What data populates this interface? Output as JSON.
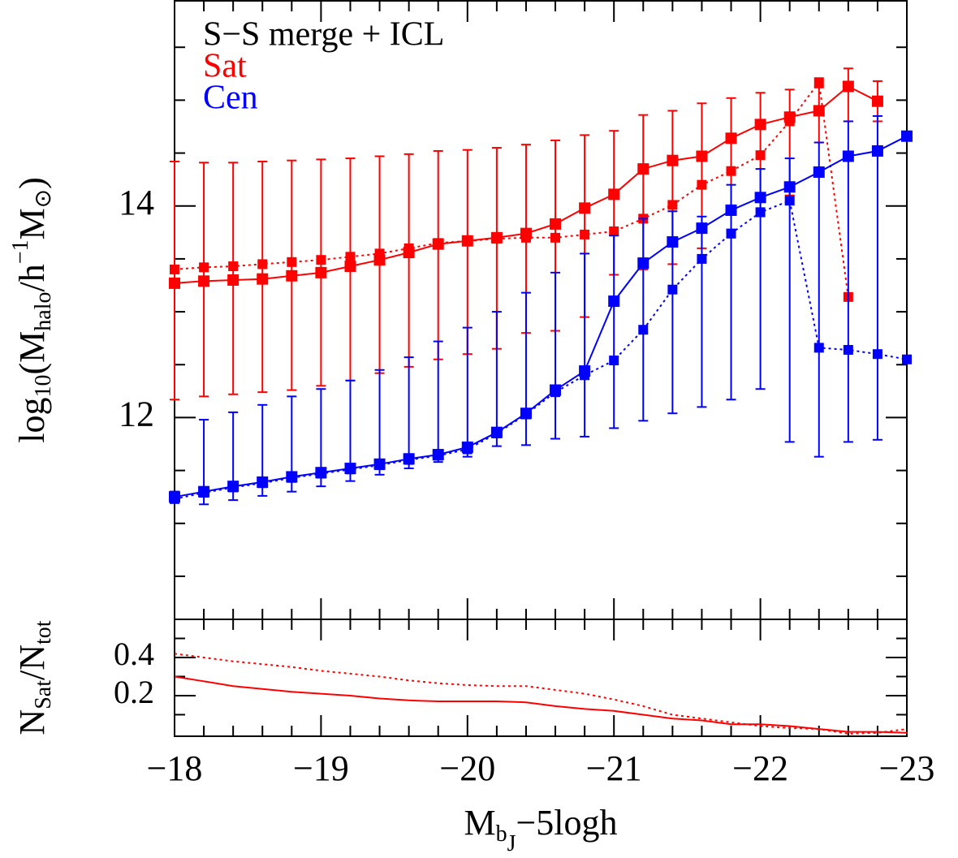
{
  "chart_data": [
    {
      "type": "line",
      "annotation": "S−S merge + ICL",
      "ylabel": [
        "log",
        "10",
        "(M",
        "halo",
        "/h",
        "−1",
        "M",
        "⊙",
        ")"
      ],
      "x": [
        -18,
        -18.2,
        -18.4,
        -18.6,
        -18.8,
        -19,
        -19.2,
        -19.4,
        -19.6,
        -19.8,
        -20,
        -20.2,
        -20.4,
        -20.6,
        -20.8,
        -21,
        -21.2,
        -21.4,
        -21.6,
        -21.8,
        -22,
        -22.2,
        -22.4,
        -22.6,
        -22.8,
        -23
      ],
      "xlim": [
        -18,
        -23
      ],
      "xticks": [
        -18,
        -19,
        -20,
        -21,
        -22,
        -23
      ],
      "show_xtick_labels": false,
      "xminorticks": [
        -18.2,
        -18.4,
        -18.6,
        -18.8,
        -19.2,
        -19.4,
        -19.6,
        -19.8,
        -20.2,
        -20.4,
        -20.6,
        -20.8,
        -21.2,
        -21.4,
        -21.6,
        -21.8,
        -22.2,
        -22.4,
        -22.6,
        -22.8
      ],
      "ylim": [
        10.093,
        15.939
      ],
      "yticks": [
        12,
        14
      ],
      "yminorticks": [
        10.5,
        11,
        11.5,
        12.5,
        13,
        13.5,
        14.5,
        15,
        15.5
      ],
      "series": [
        {
          "name": "Sat",
          "color": "#ff0000",
          "values": [
            13.27,
            13.29,
            13.3,
            13.31,
            13.34,
            13.37,
            13.43,
            13.49,
            13.56,
            13.64,
            13.67,
            13.7,
            13.74,
            13.83,
            13.98,
            14.11,
            14.35,
            14.43,
            14.47,
            14.64,
            14.77,
            14.84,
            14.9,
            15.13,
            14.99,
            null
          ],
          "lower": [
            12.17,
            12.2,
            12.22,
            12.24,
            12.26,
            12.3,
            12.35,
            12.42,
            12.48,
            12.55,
            12.6,
            12.65,
            12.8,
            12.82,
            12.95,
            13.35,
            13.4,
            13.45,
            13.6,
            13.7,
            13.98,
            14.1,
            14.6,
            14.8,
            14.8,
            null
          ],
          "upper": [
            14.42,
            14.41,
            14.41,
            14.42,
            14.43,
            14.44,
            14.45,
            14.47,
            14.49,
            14.52,
            14.53,
            14.55,
            14.58,
            14.62,
            14.67,
            14.71,
            14.86,
            14.9,
            14.97,
            15.02,
            15.07,
            15.1,
            15.12,
            15.3,
            15.18,
            null
          ],
          "alt_values": [
            13.4,
            13.42,
            13.43,
            13.45,
            13.47,
            13.49,
            13.52,
            13.55,
            13.6,
            13.65,
            13.67,
            13.69,
            13.7,
            13.7,
            13.73,
            13.76,
            13.88,
            14.01,
            14.2,
            14.33,
            14.48,
            14.8,
            15.17,
            13.14,
            null,
            null
          ]
        },
        {
          "name": "Cen",
          "color": "#0000ff",
          "values": [
            11.25,
            11.3,
            11.35,
            11.39,
            11.44,
            11.48,
            11.52,
            11.56,
            11.61,
            11.65,
            11.72,
            11.86,
            12.04,
            12.26,
            12.44,
            13.1,
            13.46,
            13.66,
            13.79,
            13.96,
            14.08,
            14.18,
            14.32,
            14.47,
            14.52,
            14.66
          ],
          "lower": [
            11.3,
            11.18,
            11.22,
            11.26,
            11.3,
            11.35,
            11.4,
            11.46,
            11.52,
            11.58,
            11.63,
            11.73,
            11.74,
            11.8,
            11.82,
            11.9,
            11.97,
            12.04,
            12.1,
            12.17,
            12.27,
            11.77,
            11.63,
            11.77,
            11.79,
            null
          ],
          "upper": [
            11.3,
            11.98,
            12.05,
            12.12,
            12.2,
            12.27,
            12.35,
            12.45,
            12.57,
            12.72,
            12.85,
            13.0,
            13.18,
            13.37,
            13.55,
            13.72,
            13.88,
            13.95,
            13.9,
            14.2,
            14.35,
            14.45,
            14.6,
            14.8,
            14.85,
            null
          ],
          "alt_values": [
            11.23,
            11.29,
            11.34,
            11.38,
            11.43,
            11.47,
            11.51,
            11.55,
            11.6,
            11.64,
            11.7,
            11.85,
            12.03,
            12.24,
            12.4,
            12.54,
            12.83,
            13.21,
            13.5,
            13.74,
            13.94,
            14.05,
            12.66,
            12.64,
            12.6,
            12.55
          ]
        }
      ]
    },
    {
      "type": "line",
      "ylabel": [
        "N",
        "Sat",
        "/N",
        "tot"
      ],
      "xlabel": [
        "M",
        "b",
        "J",
        "−5logh"
      ],
      "x": [
        -18,
        -18.2,
        -18.4,
        -18.6,
        -18.8,
        -19,
        -19.2,
        -19.4,
        -19.6,
        -19.8,
        -20,
        -20.2,
        -20.4,
        -20.6,
        -20.8,
        -21,
        -21.2,
        -21.4,
        -21.6,
        -21.8,
        -22,
        -22.2,
        -22.4,
        -22.6,
        -22.8,
        -23
      ],
      "xlim": [
        -18,
        -23
      ],
      "xticks": [
        {
          "value": -18,
          "label": "−18"
        },
        {
          "value": -19,
          "label": "−19"
        },
        {
          "value": -20,
          "label": "−20"
        },
        {
          "value": -21,
          "label": "−21"
        },
        {
          "value": -22,
          "label": "−22"
        },
        {
          "value": -23,
          "label": "−23"
        }
      ],
      "show_xtick_labels": true,
      "xminorticks": [
        -18.2,
        -18.4,
        -18.6,
        -18.8,
        -19.2,
        -19.4,
        -19.6,
        -19.8,
        -20.2,
        -20.4,
        -20.6,
        -20.8,
        -21.2,
        -21.4,
        -21.6,
        -21.8,
        -22.2,
        -22.4,
        -22.6,
        -22.8
      ],
      "ylim": [
        -0.013,
        0.6
      ],
      "yticks": [
        0.2,
        0.4
      ],
      "yminorticks": [
        0.1,
        0.3,
        0.5
      ],
      "series": [
        {
          "color": "#ff0000",
          "values": [
            0.3,
            0.275,
            0.25,
            0.235,
            0.22,
            0.21,
            0.2,
            0.185,
            0.175,
            0.17,
            0.17,
            0.17,
            0.165,
            0.145,
            0.13,
            0.12,
            0.1,
            0.08,
            0.07,
            0.05,
            0.05,
            0.04,
            0.025,
            0.01,
            0.01,
            0.005
          ],
          "alt_values": [
            0.42,
            0.4,
            0.38,
            0.365,
            0.35,
            0.33,
            0.315,
            0.3,
            0.28,
            0.265,
            0.255,
            0.25,
            0.25,
            0.23,
            0.21,
            0.18,
            0.145,
            0.1,
            0.08,
            0.06,
            0.04,
            0.03,
            0.025,
            0.0,
            0.005,
            0.025
          ]
        }
      ]
    }
  ]
}
